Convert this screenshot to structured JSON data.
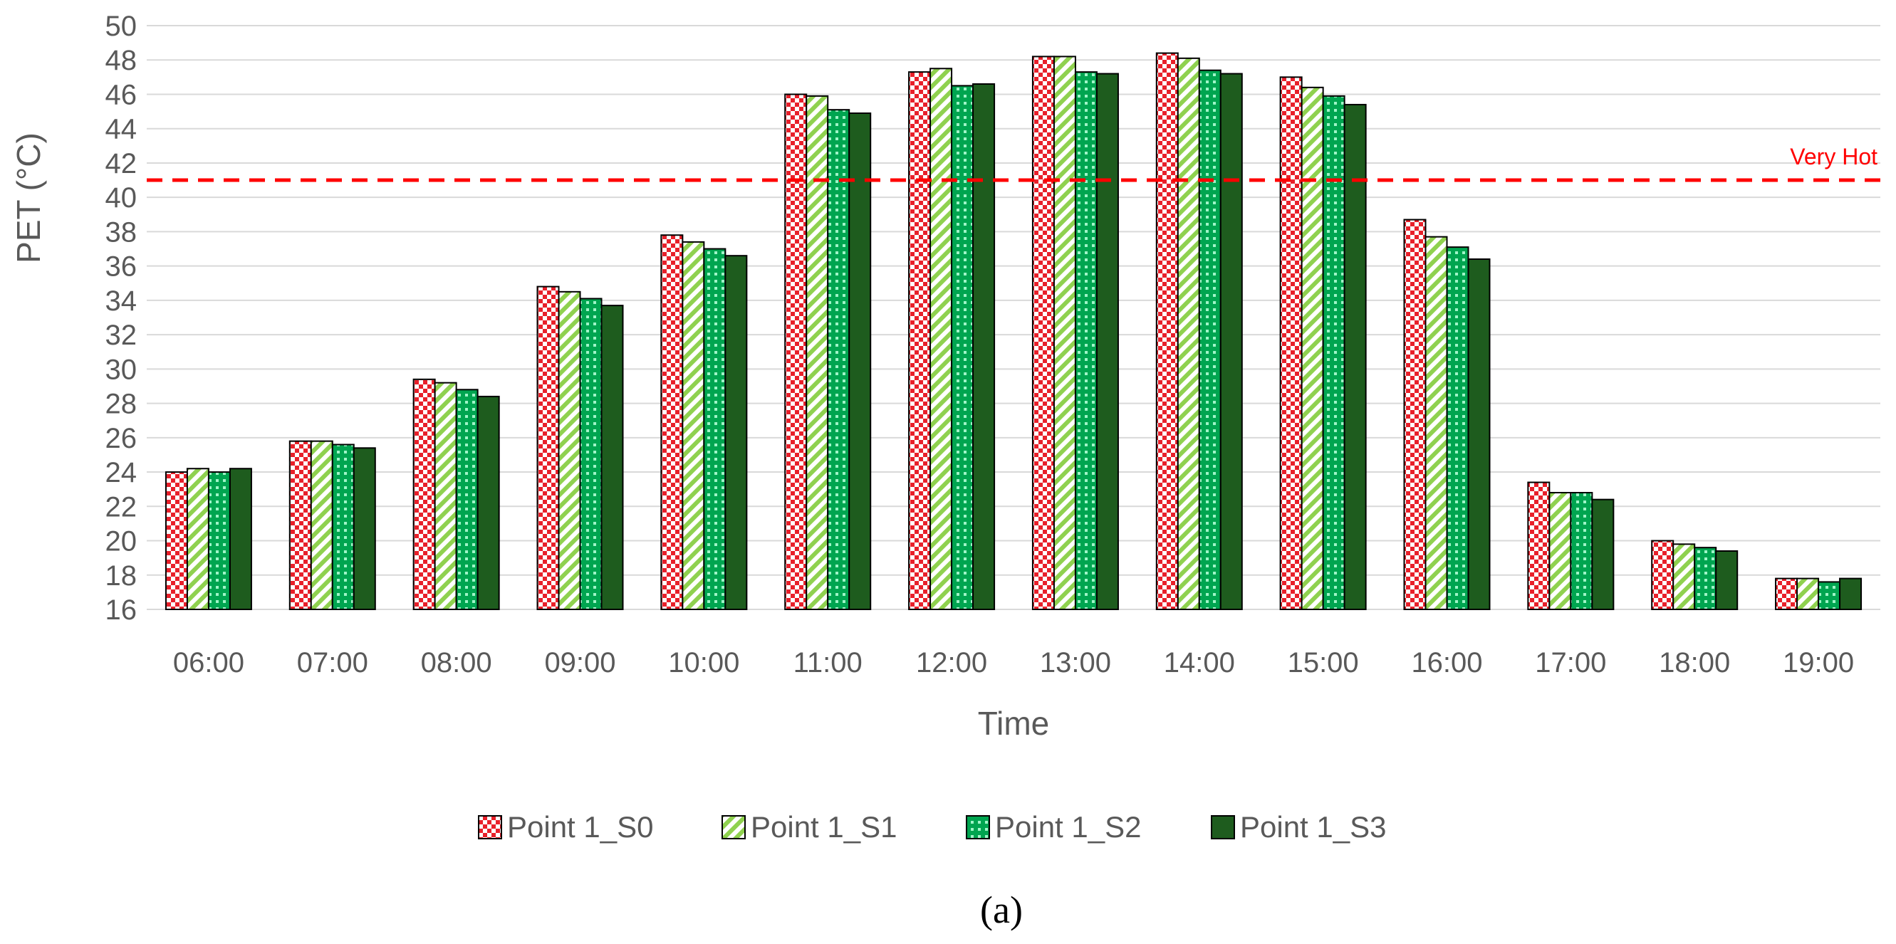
{
  "chart_data": {
    "type": "bar",
    "title": "",
    "xlabel": "Time",
    "ylabel": "PET (°C)",
    "ylim": [
      16,
      50
    ],
    "ytick_step": 2,
    "grid": true,
    "legend_position": "bottom",
    "categories": [
      "06:00",
      "07:00",
      "08:00",
      "09:00",
      "10:00",
      "11:00",
      "12:00",
      "13:00",
      "14:00",
      "15:00",
      "16:00",
      "17:00",
      "18:00",
      "19:00"
    ],
    "series": [
      {
        "name": "Point 1_S0",
        "pattern": "red-checker",
        "color": "#e8202a",
        "values": [
          24.0,
          25.8,
          29.4,
          34.8,
          37.8,
          46.0,
          47.3,
          48.2,
          48.4,
          47.0,
          38.7,
          23.4,
          20.0,
          17.8
        ]
      },
      {
        "name": "Point 1_S1",
        "pattern": "green-diagonal",
        "color": "#8fd14f",
        "values": [
          24.2,
          25.8,
          29.2,
          34.5,
          37.4,
          45.9,
          47.5,
          48.2,
          48.1,
          46.4,
          37.7,
          22.8,
          19.8,
          17.8
        ]
      },
      {
        "name": "Point 1_S2",
        "pattern": "teal-dots",
        "color": "#00a550",
        "values": [
          24.0,
          25.6,
          28.8,
          34.1,
          37.0,
          45.1,
          46.5,
          47.3,
          47.4,
          45.9,
          37.1,
          22.8,
          19.6,
          17.6
        ]
      },
      {
        "name": "Point 1_S3",
        "pattern": "solid",
        "color": "#1e5c1e",
        "values": [
          24.2,
          25.4,
          28.4,
          33.7,
          36.6,
          44.9,
          46.6,
          47.2,
          47.2,
          45.4,
          36.4,
          22.4,
          19.4,
          17.8
        ]
      }
    ],
    "reference_line": {
      "value": 41,
      "label": "Very Hot",
      "color": "#ff0000",
      "style": "dashed"
    },
    "caption": "(a)"
  }
}
